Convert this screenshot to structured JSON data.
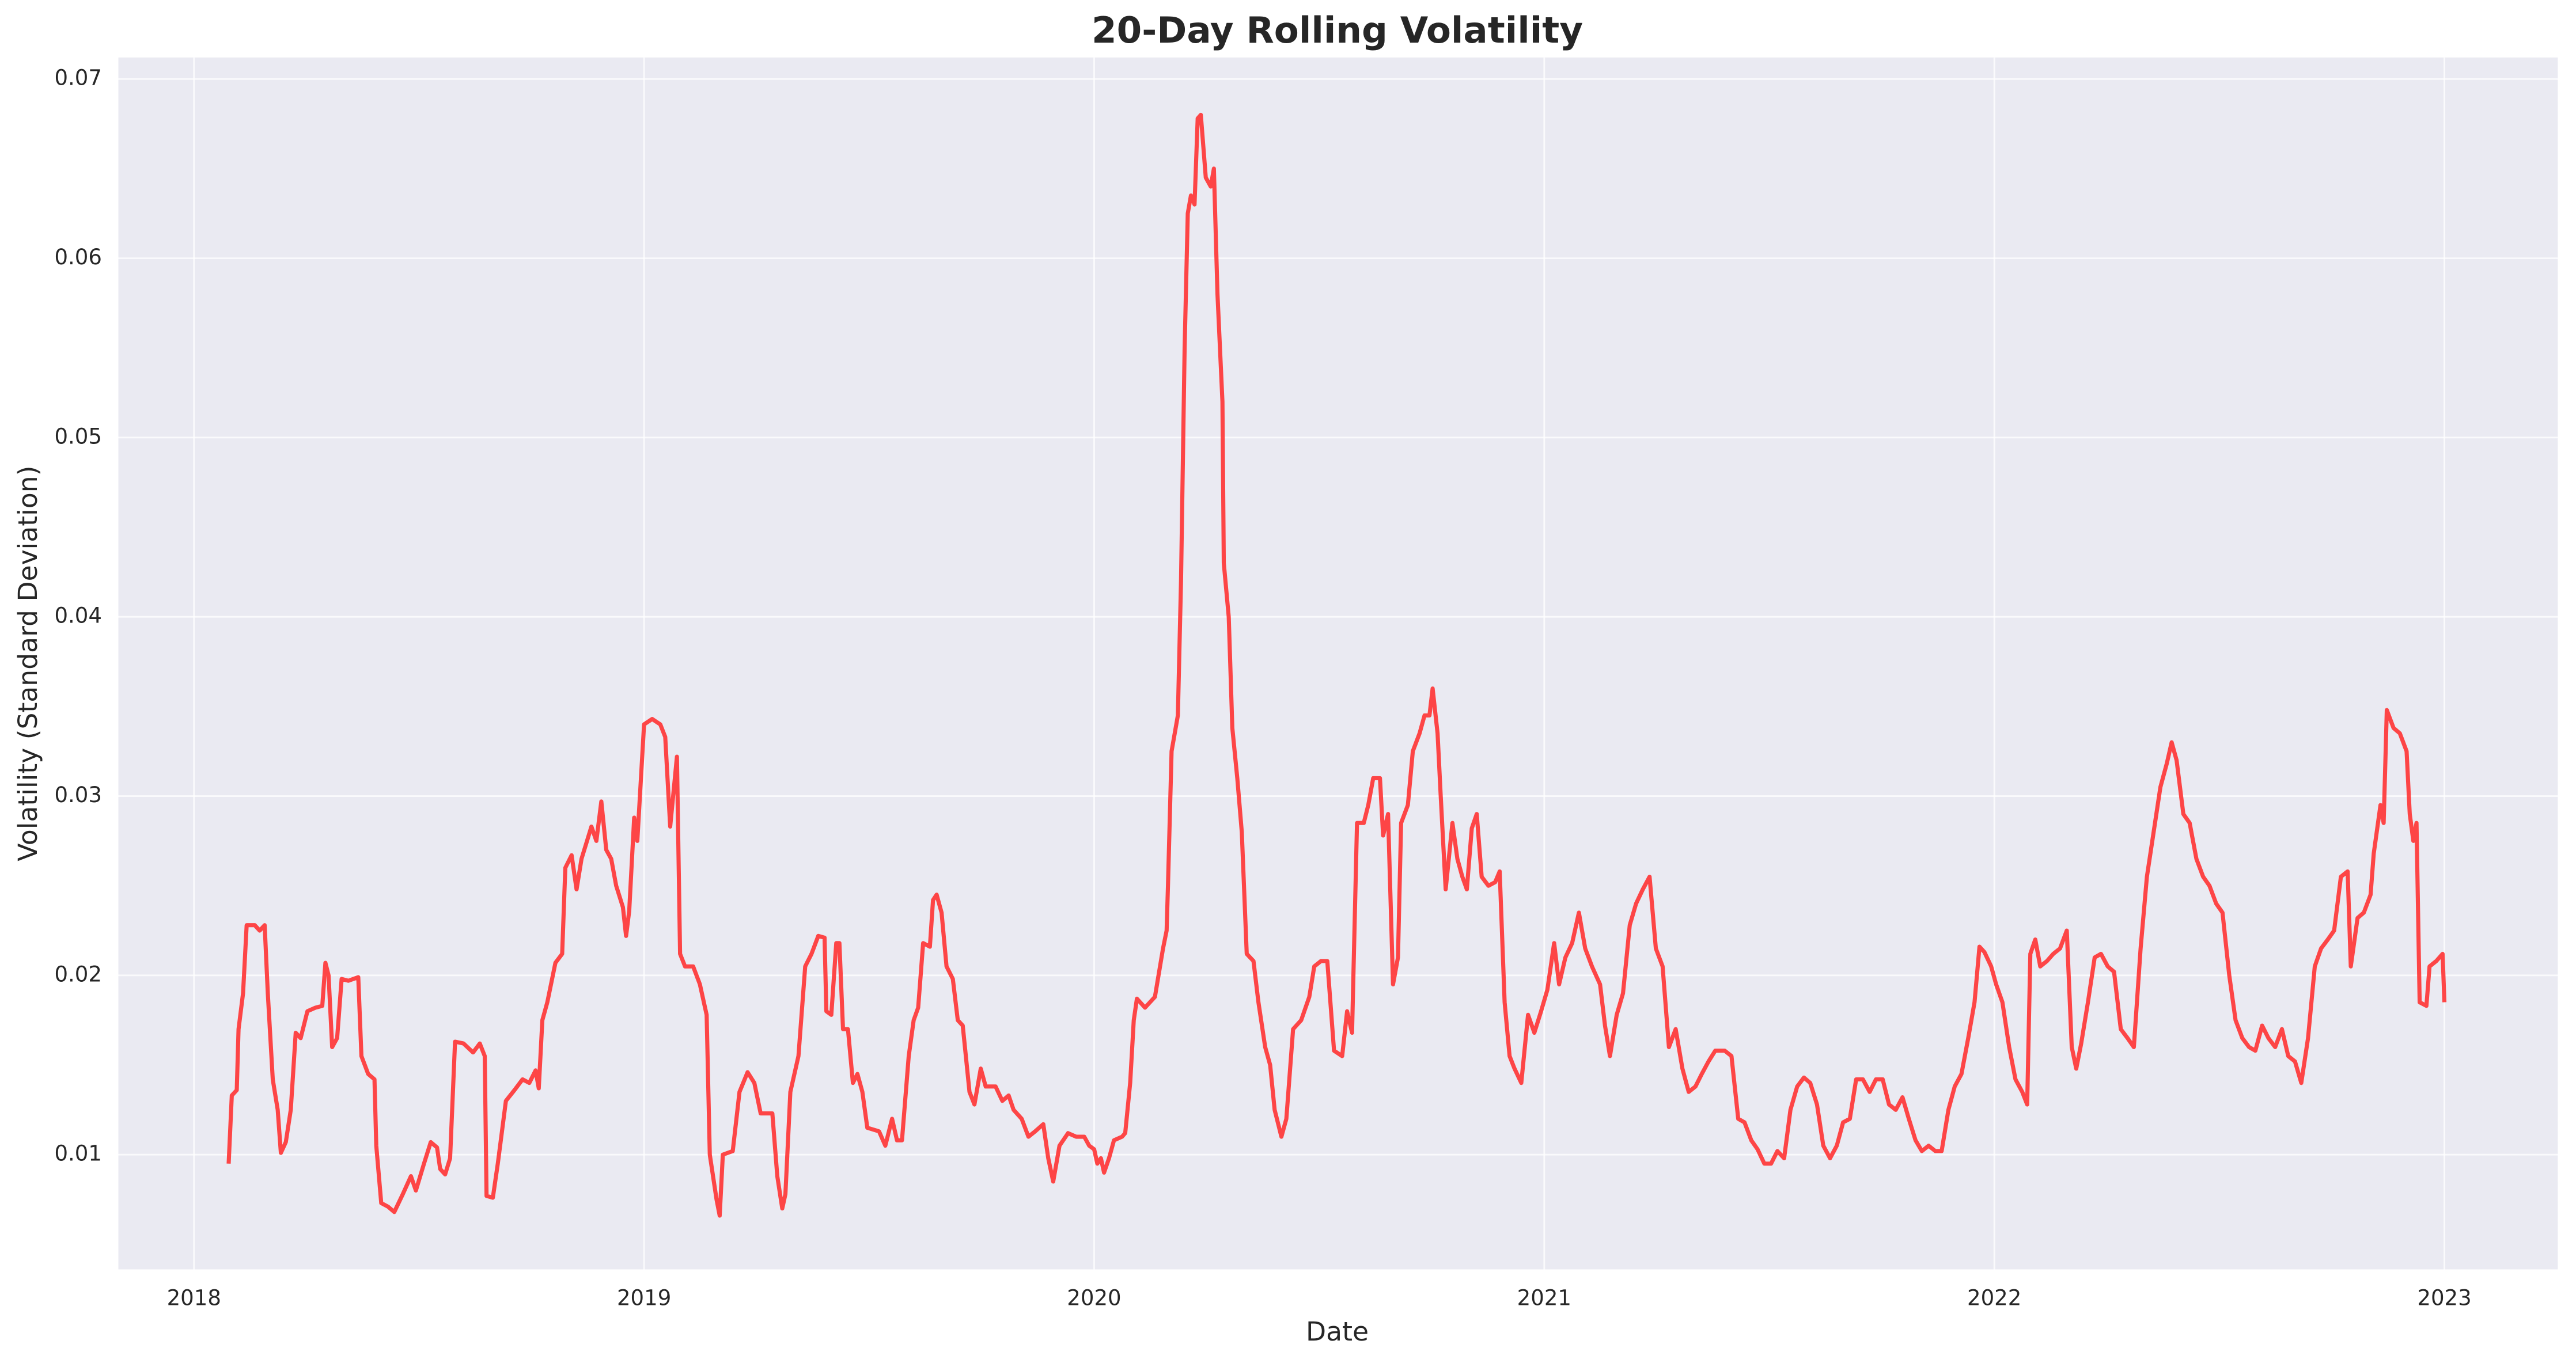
{
  "chart_data": {
    "type": "line",
    "title": "20-Day Rolling Volatility",
    "x_label": "Date",
    "y_label": "Volatility (Standard Deviation)",
    "color": "#ff3333",
    "grid": true,
    "xlim": [
      2017.832,
      2023.252
    ],
    "ylim": [
      0.0036,
      0.0712
    ],
    "xticks": [
      2018,
      2019,
      2020,
      2021,
      2022,
      2023
    ],
    "yticks": [
      0.01,
      0.02,
      0.03,
      0.04,
      0.05,
      0.06,
      0.07
    ],
    "x": [
      2018.077,
      2018.084,
      2018.095,
      2018.099,
      2018.109,
      2018.117,
      2018.135,
      2018.146,
      2018.157,
      2018.164,
      2018.175,
      2018.186,
      2018.193,
      2018.204,
      2018.215,
      2018.226,
      2018.237,
      2018.252,
      2018.27,
      2018.285,
      2018.292,
      2018.299,
      2018.307,
      2018.318,
      2018.328,
      2018.343,
      2018.365,
      2018.372,
      2018.387,
      2018.401,
      2018.405,
      2018.416,
      2018.431,
      2018.445,
      2018.464,
      2018.482,
      2018.493,
      2018.511,
      2018.526,
      2018.54,
      2018.547,
      2018.558,
      2018.569,
      2018.58,
      2018.599,
      2018.62,
      2018.635,
      2018.646,
      2018.65,
      2018.664,
      2018.675,
      2018.693,
      2018.712,
      2018.73,
      2018.745,
      2018.759,
      2018.766,
      2018.774,
      2018.785,
      2018.803,
      2018.818,
      2018.825,
      2018.839,
      2018.85,
      2018.861,
      2018.883,
      2018.894,
      2018.905,
      2018.916,
      2018.927,
      2018.938,
      2018.953,
      2018.96,
      2018.967,
      2018.978,
      2018.985,
      2019.0,
      2019.018,
      2019.036,
      2019.047,
      2019.058,
      2019.073,
      2019.08,
      2019.091,
      2019.109,
      2019.124,
      2019.139,
      2019.146,
      2019.161,
      2019.168,
      2019.175,
      2019.197,
      2019.212,
      2019.23,
      2019.245,
      2019.259,
      2019.285,
      2019.296,
      2019.307,
      2019.314,
      2019.325,
      2019.343,
      2019.358,
      2019.372,
      2019.387,
      2019.401,
      2019.405,
      2019.416,
      2019.427,
      2019.434,
      2019.442,
      2019.453,
      2019.464,
      2019.474,
      2019.485,
      2019.496,
      2019.522,
      2019.536,
      2019.551,
      2019.562,
      2019.573,
      2019.588,
      2019.599,
      2019.609,
      2019.62,
      2019.635,
      2019.642,
      2019.65,
      2019.661,
      2019.672,
      2019.686,
      2019.697,
      2019.708,
      2019.723,
      2019.734,
      2019.748,
      2019.759,
      2019.781,
      2019.796,
      2019.81,
      2019.821,
      2019.839,
      2019.854,
      2019.869,
      2019.887,
      2019.898,
      2019.909,
      2019.923,
      2019.942,
      2019.96,
      2019.978,
      2019.989,
      2020.0,
      2020.007,
      2020.015,
      2020.022,
      2020.033,
      2020.044,
      2020.062,
      2020.069,
      2020.08,
      2020.088,
      2020.095,
      2020.113,
      2020.135,
      2020.153,
      2020.161,
      2020.164,
      2020.172,
      2020.186,
      2020.193,
      2020.201,
      2020.208,
      2020.215,
      2020.223,
      2020.23,
      2020.237,
      2020.248,
      2020.259,
      2020.266,
      2020.274,
      2020.285,
      2020.288,
      2020.299,
      2020.307,
      2020.318,
      2020.328,
      2020.339,
      2020.354,
      2020.365,
      2020.38,
      2020.391,
      2020.401,
      2020.416,
      2020.427,
      2020.442,
      2020.46,
      2020.478,
      2020.489,
      2020.504,
      2020.518,
      2020.533,
      2020.551,
      2020.562,
      2020.573,
      2020.584,
      2020.599,
      2020.609,
      2020.62,
      2020.635,
      2020.642,
      2020.653,
      2020.664,
      2020.675,
      2020.682,
      2020.697,
      2020.708,
      2020.723,
      2020.734,
      2020.745,
      2020.752,
      2020.763,
      2020.77,
      2020.781,
      2020.796,
      2020.807,
      2020.818,
      2020.828,
      2020.839,
      2020.85,
      2020.861,
      2020.876,
      2020.891,
      2020.901,
      2020.912,
      2020.923,
      2020.934,
      2020.949,
      2020.964,
      2020.978,
      2020.993,
      2021.007,
      2021.022,
      2021.033,
      2021.047,
      2021.062,
      2021.077,
      2021.091,
      2021.106,
      2021.124,
      2021.135,
      2021.146,
      2021.161,
      2021.175,
      2021.19,
      2021.204,
      2021.219,
      2021.234,
      2021.248,
      2021.263,
      2021.277,
      2021.292,
      2021.307,
      2021.321,
      2021.336,
      2021.35,
      2021.365,
      2021.38,
      2021.401,
      2021.416,
      2021.431,
      2021.445,
      2021.46,
      2021.474,
      2021.489,
      2021.504,
      2021.518,
      2021.533,
      2021.547,
      2021.562,
      2021.577,
      2021.591,
      2021.606,
      2021.62,
      2021.635,
      2021.65,
      2021.664,
      2021.679,
      2021.693,
      2021.708,
      2021.723,
      2021.737,
      2021.752,
      2021.766,
      2021.781,
      2021.796,
      2021.81,
      2021.825,
      2021.839,
      2021.854,
      2021.869,
      2021.883,
      2021.898,
      2021.912,
      2021.927,
      2021.942,
      2021.956,
      2021.967,
      2021.978,
      2021.993,
      2022.004,
      2022.018,
      2022.033,
      2022.047,
      2022.062,
      2022.073,
      2022.08,
      2022.091,
      2022.102,
      2022.117,
      2022.131,
      2022.146,
      2022.161,
      2022.172,
      2022.182,
      2022.193,
      2022.208,
      2022.223,
      2022.237,
      2022.252,
      2022.266,
      2022.281,
      2022.296,
      2022.31,
      2022.325,
      2022.339,
      2022.354,
      2022.369,
      2022.383,
      2022.394,
      2022.405,
      2022.42,
      2022.434,
      2022.449,
      2022.464,
      2022.478,
      2022.493,
      2022.507,
      2022.522,
      2022.536,
      2022.551,
      2022.566,
      2022.58,
      2022.595,
      2022.609,
      2022.624,
      2022.639,
      2022.653,
      2022.668,
      2022.682,
      2022.697,
      2022.712,
      2022.726,
      2022.741,
      2022.755,
      2022.77,
      2022.785,
      2022.792,
      2022.807,
      2022.821,
      2022.836,
      2022.843,
      2022.858,
      2022.865,
      2022.872,
      2022.887,
      2022.901,
      2022.916,
      2022.923,
      2022.931,
      2022.938,
      2022.945,
      2022.96,
      2022.967,
      2022.982,
      2022.996,
      2023.0
    ],
    "values": [
      0.0095,
      0.0133,
      0.0136,
      0.017,
      0.019,
      0.0228,
      0.0228,
      0.0225,
      0.0228,
      0.019,
      0.0142,
      0.0125,
      0.0101,
      0.0107,
      0.0125,
      0.0168,
      0.0165,
      0.018,
      0.0182,
      0.0183,
      0.0207,
      0.02,
      0.016,
      0.0165,
      0.0198,
      0.0197,
      0.0199,
      0.0155,
      0.0145,
      0.0142,
      0.0105,
      0.0073,
      0.0071,
      0.0068,
      0.0078,
      0.0088,
      0.008,
      0.0095,
      0.0107,
      0.0104,
      0.0092,
      0.0089,
      0.0098,
      0.0163,
      0.0162,
      0.0157,
      0.0162,
      0.0155,
      0.0077,
      0.0076,
      0.0095,
      0.013,
      0.0136,
      0.0142,
      0.014,
      0.0147,
      0.0137,
      0.0175,
      0.0185,
      0.0207,
      0.0212,
      0.026,
      0.0267,
      0.0248,
      0.0265,
      0.0283,
      0.0275,
      0.0297,
      0.027,
      0.0265,
      0.025,
      0.0238,
      0.0222,
      0.0236,
      0.0288,
      0.0275,
      0.034,
      0.0343,
      0.034,
      0.0333,
      0.0283,
      0.0322,
      0.0212,
      0.0205,
      0.0205,
      0.0195,
      0.0178,
      0.01,
      0.0075,
      0.0066,
      0.01,
      0.0102,
      0.0135,
      0.0146,
      0.014,
      0.0123,
      0.0123,
      0.0088,
      0.007,
      0.0078,
      0.0135,
      0.0155,
      0.0205,
      0.0212,
      0.0222,
      0.0221,
      0.018,
      0.0178,
      0.0218,
      0.0218,
      0.017,
      0.017,
      0.014,
      0.0145,
      0.0135,
      0.0115,
      0.0113,
      0.0105,
      0.012,
      0.0108,
      0.0108,
      0.0155,
      0.0175,
      0.0182,
      0.0218,
      0.0216,
      0.0242,
      0.0245,
      0.0235,
      0.0205,
      0.0198,
      0.0175,
      0.0172,
      0.0135,
      0.0128,
      0.0148,
      0.0138,
      0.0138,
      0.013,
      0.0133,
      0.0125,
      0.012,
      0.011,
      0.0113,
      0.0117,
      0.0098,
      0.0085,
      0.0105,
      0.0112,
      0.011,
      0.011,
      0.0105,
      0.0103,
      0.0095,
      0.0098,
      0.009,
      0.0098,
      0.0108,
      0.011,
      0.0112,
      0.014,
      0.0175,
      0.0187,
      0.0182,
      0.0188,
      0.0215,
      0.0225,
      0.025,
      0.0325,
      0.0345,
      0.042,
      0.055,
      0.0625,
      0.0635,
      0.063,
      0.0678,
      0.068,
      0.0645,
      0.064,
      0.065,
      0.058,
      0.052,
      0.043,
      0.04,
      0.0338,
      0.031,
      0.028,
      0.0212,
      0.0208,
      0.0185,
      0.016,
      0.015,
      0.0125,
      0.011,
      0.012,
      0.017,
      0.0175,
      0.0188,
      0.0205,
      0.0208,
      0.0208,
      0.0158,
      0.0155,
      0.018,
      0.0168,
      0.0285,
      0.0285,
      0.0295,
      0.031,
      0.031,
      0.0278,
      0.029,
      0.0195,
      0.021,
      0.0285,
      0.0295,
      0.0325,
      0.0335,
      0.0345,
      0.0345,
      0.036,
      0.0335,
      0.03,
      0.0248,
      0.0285,
      0.0265,
      0.0255,
      0.0248,
      0.0282,
      0.029,
      0.0255,
      0.025,
      0.0252,
      0.0258,
      0.0185,
      0.0155,
      0.0148,
      0.014,
      0.0178,
      0.0168,
      0.018,
      0.0192,
      0.0218,
      0.0195,
      0.021,
      0.0218,
      0.0235,
      0.0215,
      0.0205,
      0.0195,
      0.0172,
      0.0155,
      0.0178,
      0.019,
      0.0228,
      0.024,
      0.0248,
      0.0255,
      0.0215,
      0.0205,
      0.016,
      0.017,
      0.0148,
      0.0135,
      0.0138,
      0.0145,
      0.0152,
      0.0158,
      0.0158,
      0.0155,
      0.012,
      0.0118,
      0.0108,
      0.0103,
      0.0095,
      0.0095,
      0.0102,
      0.0098,
      0.0125,
      0.0138,
      0.0143,
      0.014,
      0.0128,
      0.0105,
      0.0098,
      0.0105,
      0.0118,
      0.012,
      0.0142,
      0.0142,
      0.0135,
      0.0142,
      0.0142,
      0.0128,
      0.0125,
      0.0132,
      0.012,
      0.0108,
      0.0102,
      0.0105,
      0.0102,
      0.0102,
      0.0125,
      0.0138,
      0.0145,
      0.0165,
      0.0185,
      0.0216,
      0.0213,
      0.0205,
      0.0195,
      0.0185,
      0.016,
      0.0142,
      0.0135,
      0.0128,
      0.0212,
      0.022,
      0.0205,
      0.0208,
      0.0212,
      0.0215,
      0.0225,
      0.016,
      0.0148,
      0.0162,
      0.0185,
      0.021,
      0.0212,
      0.0205,
      0.0202,
      0.017,
      0.0165,
      0.016,
      0.0215,
      0.0255,
      0.028,
      0.0305,
      0.0318,
      0.033,
      0.032,
      0.029,
      0.0285,
      0.0265,
      0.0255,
      0.025,
      0.024,
      0.0235,
      0.02,
      0.0175,
      0.0165,
      0.016,
      0.0158,
      0.0172,
      0.0165,
      0.016,
      0.017,
      0.0155,
      0.0152,
      0.014,
      0.0165,
      0.0205,
      0.0215,
      0.022,
      0.0225,
      0.0255,
      0.0258,
      0.0205,
      0.0232,
      0.0235,
      0.0245,
      0.0268,
      0.0295,
      0.0285,
      0.0348,
      0.0338,
      0.0335,
      0.0325,
      0.029,
      0.0275,
      0.0285,
      0.0185,
      0.0183,
      0.0205,
      0.0208,
      0.0212,
      0.0185
    ]
  }
}
